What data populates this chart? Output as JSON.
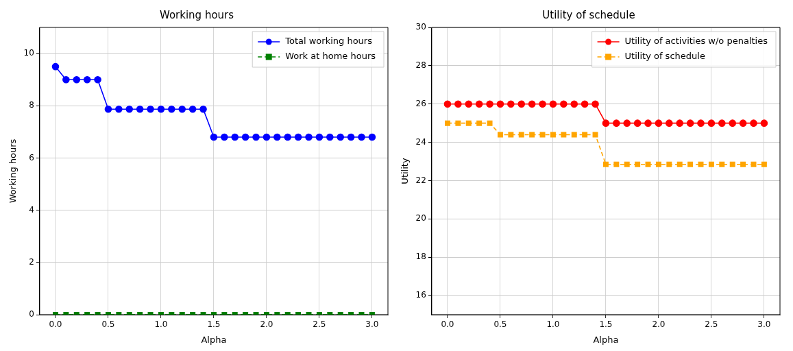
{
  "chart_data": [
    {
      "type": "line",
      "title": "Working hours",
      "xlabel": "Alpha",
      "ylabel": "Working hours",
      "x": [
        0,
        0.1,
        0.2,
        0.3,
        0.4,
        0.5,
        0.6,
        0.7,
        0.8,
        0.9,
        1.0,
        1.1,
        1.2,
        1.3,
        1.4,
        1.5,
        1.6,
        1.7,
        1.8,
        1.9,
        2.0,
        2.1,
        2.2,
        2.3,
        2.4,
        2.5,
        2.6,
        2.7,
        2.8,
        2.9,
        3.0
      ],
      "xlim": [
        -0.15,
        3.15
      ],
      "xticks": [
        {
          "value": 0,
          "label": "0.0"
        },
        {
          "value": 0.5,
          "label": "0.5"
        },
        {
          "value": 1,
          "label": "1.0"
        },
        {
          "value": 1.5,
          "label": "1.5"
        },
        {
          "value": 2,
          "label": "2.0"
        },
        {
          "value": 2.5,
          "label": "2.5"
        },
        {
          "value": 3,
          "label": "3.0"
        }
      ],
      "ylim": [
        0,
        11
      ],
      "yticks": [
        0,
        2,
        4,
        6,
        8,
        10
      ],
      "grid": true,
      "legend": "top right",
      "series": [
        {
          "name": "Total working hours",
          "color": "#0000ff",
          "marker": "circle",
          "line_style": "solid",
          "values": [
            9.5,
            9,
            9,
            9,
            9,
            7.87,
            7.87,
            7.87,
            7.87,
            7.87,
            7.87,
            7.87,
            7.87,
            7.87,
            7.87,
            6.8,
            6.8,
            6.8,
            6.8,
            6.8,
            6.8,
            6.8,
            6.8,
            6.8,
            6.8,
            6.8,
            6.8,
            6.8,
            6.8,
            6.8,
            6.8
          ]
        },
        {
          "name": "Work at home hours",
          "color": "#008000",
          "marker": "square",
          "line_style": "dashed",
          "values": [
            0,
            0,
            0,
            0,
            0,
            0,
            0,
            0,
            0,
            0,
            0,
            0,
            0,
            0,
            0,
            0,
            0,
            0,
            0,
            0,
            0,
            0,
            0,
            0,
            0,
            0,
            0,
            0,
            0,
            0,
            0
          ]
        }
      ]
    },
    {
      "type": "line",
      "title": "Utility of schedule",
      "xlabel": "Alpha",
      "ylabel": "Utility",
      "x": [
        0,
        0.1,
        0.2,
        0.3,
        0.4,
        0.5,
        0.6,
        0.7,
        0.8,
        0.9,
        1.0,
        1.1,
        1.2,
        1.3,
        1.4,
        1.5,
        1.6,
        1.7,
        1.8,
        1.9,
        2.0,
        2.1,
        2.2,
        2.3,
        2.4,
        2.5,
        2.6,
        2.7,
        2.8,
        2.9,
        3.0
      ],
      "xlim": [
        -0.15,
        3.15
      ],
      "xticks": [
        {
          "value": 0,
          "label": "0.0"
        },
        {
          "value": 0.5,
          "label": "0.5"
        },
        {
          "value": 1,
          "label": "1.0"
        },
        {
          "value": 1.5,
          "label": "1.5"
        },
        {
          "value": 2,
          "label": "2.0"
        },
        {
          "value": 2.5,
          "label": "2.5"
        },
        {
          "value": 3,
          "label": "3.0"
        }
      ],
      "ylim": [
        15,
        30
      ],
      "yticks": [
        16,
        18,
        20,
        22,
        24,
        26,
        28,
        30
      ],
      "grid": true,
      "legend": "top right",
      "series": [
        {
          "name": "Utility of activities w/o penalties",
          "color": "#ff0000",
          "marker": "circle",
          "line_style": "solid",
          "values": [
            26,
            26,
            26,
            26,
            26,
            26,
            26,
            26,
            26,
            26,
            26,
            26,
            26,
            26,
            26,
            25,
            25,
            25,
            25,
            25,
            25,
            25,
            25,
            25,
            25,
            25,
            25,
            25,
            25,
            25,
            25
          ]
        },
        {
          "name": "Utility of schedule",
          "color": "#ffa500",
          "marker": "square",
          "line_style": "dashed",
          "values": [
            25,
            25,
            25,
            25,
            25,
            24.4,
            24.4,
            24.4,
            24.4,
            24.4,
            24.4,
            24.4,
            24.4,
            24.4,
            24.4,
            22.85,
            22.85,
            22.85,
            22.85,
            22.85,
            22.85,
            22.85,
            22.85,
            22.85,
            22.85,
            22.85,
            22.85,
            22.85,
            22.85,
            22.85,
            22.85
          ]
        }
      ]
    }
  ]
}
